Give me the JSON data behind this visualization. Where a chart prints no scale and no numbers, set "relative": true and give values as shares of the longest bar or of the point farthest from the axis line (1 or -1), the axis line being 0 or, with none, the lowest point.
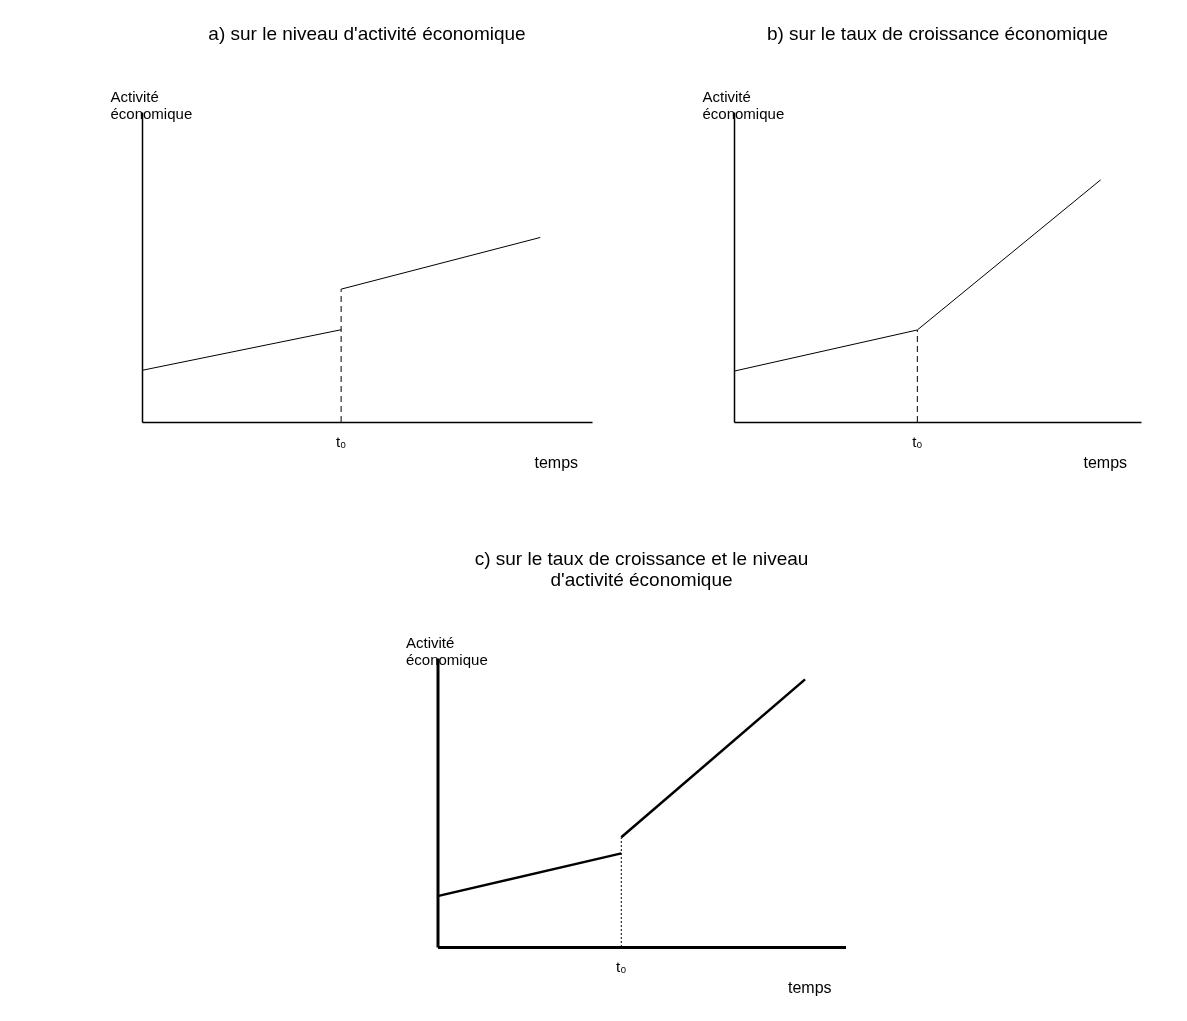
{
  "chart_data": [
    {
      "type": "line",
      "title": "a) sur le niveau d'activité économique",
      "ylabel": "Activité\néconomique",
      "xlabel": "temps",
      "relative": true,
      "categories": [
        null,
        null,
        null
      ],
      "annotations": [
        "t₀"
      ],
      "series": [
        {
          "color": "#000000",
          "values": [
            0.28,
            0.5,
            null
          ]
        },
        {
          "color": "#000000",
          "values": [
            null,
            0.72,
            1
          ]
        }
      ]
    },
    {
      "type": "line",
      "title": "b) sur le taux de croissance économique",
      "ylabel": "Activité\néconomique",
      "xlabel": "temps",
      "relative": true,
      "categories": [
        null,
        null,
        null
      ],
      "annotations": [
        "t₀"
      ],
      "series": [
        {
          "color": "#000000",
          "values": [
            0.21,
            0.38,
            1
          ]
        }
      ]
    },
    {
      "type": "line",
      "title": "c) sur le taux de croissance et le niveau\n   d'activité économique",
      "ylabel": "Activité\n\néconomique",
      "xlabel": "temps",
      "relative": true,
      "categories": [
        null,
        null,
        null
      ],
      "annotations": [
        "t₀"
      ],
      "series": [
        {
          "color": "#000000",
          "values": [
            0.19,
            0.35,
            null
          ]
        },
        {
          "color": "#000000",
          "values": [
            null,
            0.41,
            1
          ]
        }
      ]
    }
  ]
}
